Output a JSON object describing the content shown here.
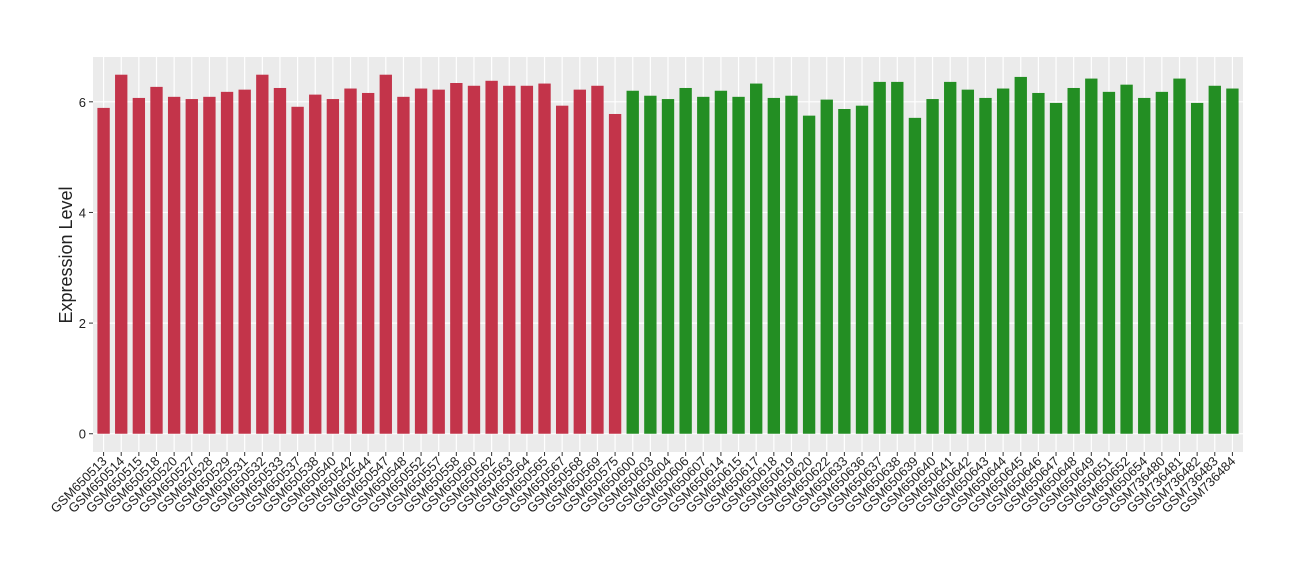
{
  "chart_data": {
    "type": "bar",
    "y_label": "Expression Level",
    "categories": [
      "GSM650513",
      "GSM650514",
      "GSM650515",
      "GSM650518",
      "GSM650520",
      "GSM650527",
      "GSM650528",
      "GSM650529",
      "GSM650531",
      "GSM650532",
      "GSM650533",
      "GSM650537",
      "GSM650538",
      "GSM650540",
      "GSM650542",
      "GSM650544",
      "GSM650547",
      "GSM650548",
      "GSM650552",
      "GSM650557",
      "GSM650558",
      "GSM650560",
      "GSM650562",
      "GSM650563",
      "GSM650564",
      "GSM650565",
      "GSM650567",
      "GSM650568",
      "GSM650569",
      "GSM650575",
      "GSM650600",
      "GSM650603",
      "GSM650604",
      "GSM650606",
      "GSM650607",
      "GSM650614",
      "GSM650615",
      "GSM650617",
      "GSM650618",
      "GSM650619",
      "GSM650620",
      "GSM650622",
      "GSM650633",
      "GSM650636",
      "GSM650637",
      "GSM650638",
      "GSM650639",
      "GSM650640",
      "GSM650641",
      "GSM650642",
      "GSM650643",
      "GSM650644",
      "GSM650645",
      "GSM650646",
      "GSM650647",
      "GSM650648",
      "GSM650649",
      "GSM650651",
      "GSM650652",
      "GSM650654",
      "GSM736480",
      "GSM736481",
      "GSM736482",
      "GSM736483",
      "GSM736484"
    ],
    "series": [
      {
        "color": "#c3344a",
        "values": [
          5.89,
          6.49,
          6.07,
          6.27,
          6.09,
          6.05,
          6.09,
          6.18,
          6.22,
          6.49,
          6.25,
          5.91,
          6.13,
          6.05,
          6.24,
          6.16,
          6.49,
          6.09,
          6.24,
          6.22,
          6.34,
          6.29,
          6.38,
          6.29,
          6.29,
          6.33,
          5.93,
          6.22,
          6.29,
          5.78,
          null,
          null,
          null,
          null,
          null,
          null,
          null,
          null,
          null,
          null,
          null,
          null,
          null,
          null,
          null,
          null,
          null,
          null,
          null,
          null,
          null,
          null,
          null,
          null,
          null,
          null,
          null,
          null,
          null,
          null,
          null,
          null,
          null,
          null,
          null
        ]
      },
      {
        "color": "#238e23",
        "values": [
          null,
          null,
          null,
          null,
          null,
          null,
          null,
          null,
          null,
          null,
          null,
          null,
          null,
          null,
          null,
          null,
          null,
          null,
          null,
          null,
          null,
          null,
          null,
          null,
          null,
          null,
          null,
          null,
          null,
          null,
          6.2,
          6.11,
          6.05,
          6.25,
          6.09,
          6.2,
          6.09,
          6.33,
          6.07,
          6.11,
          5.75,
          6.04,
          5.87,
          5.93,
          6.36,
          6.36,
          5.71,
          6.05,
          6.36,
          6.22,
          6.07,
          6.24,
          6.45,
          6.16,
          5.98,
          6.25,
          6.42,
          6.18,
          6.31,
          6.07,
          6.18,
          6.42,
          5.98,
          6.29,
          6.24
        ]
      }
    ],
    "ylim": [
      -0.33,
      6.81
    ],
    "yticks": [
      0,
      2,
      4,
      6
    ],
    "grid": true
  }
}
